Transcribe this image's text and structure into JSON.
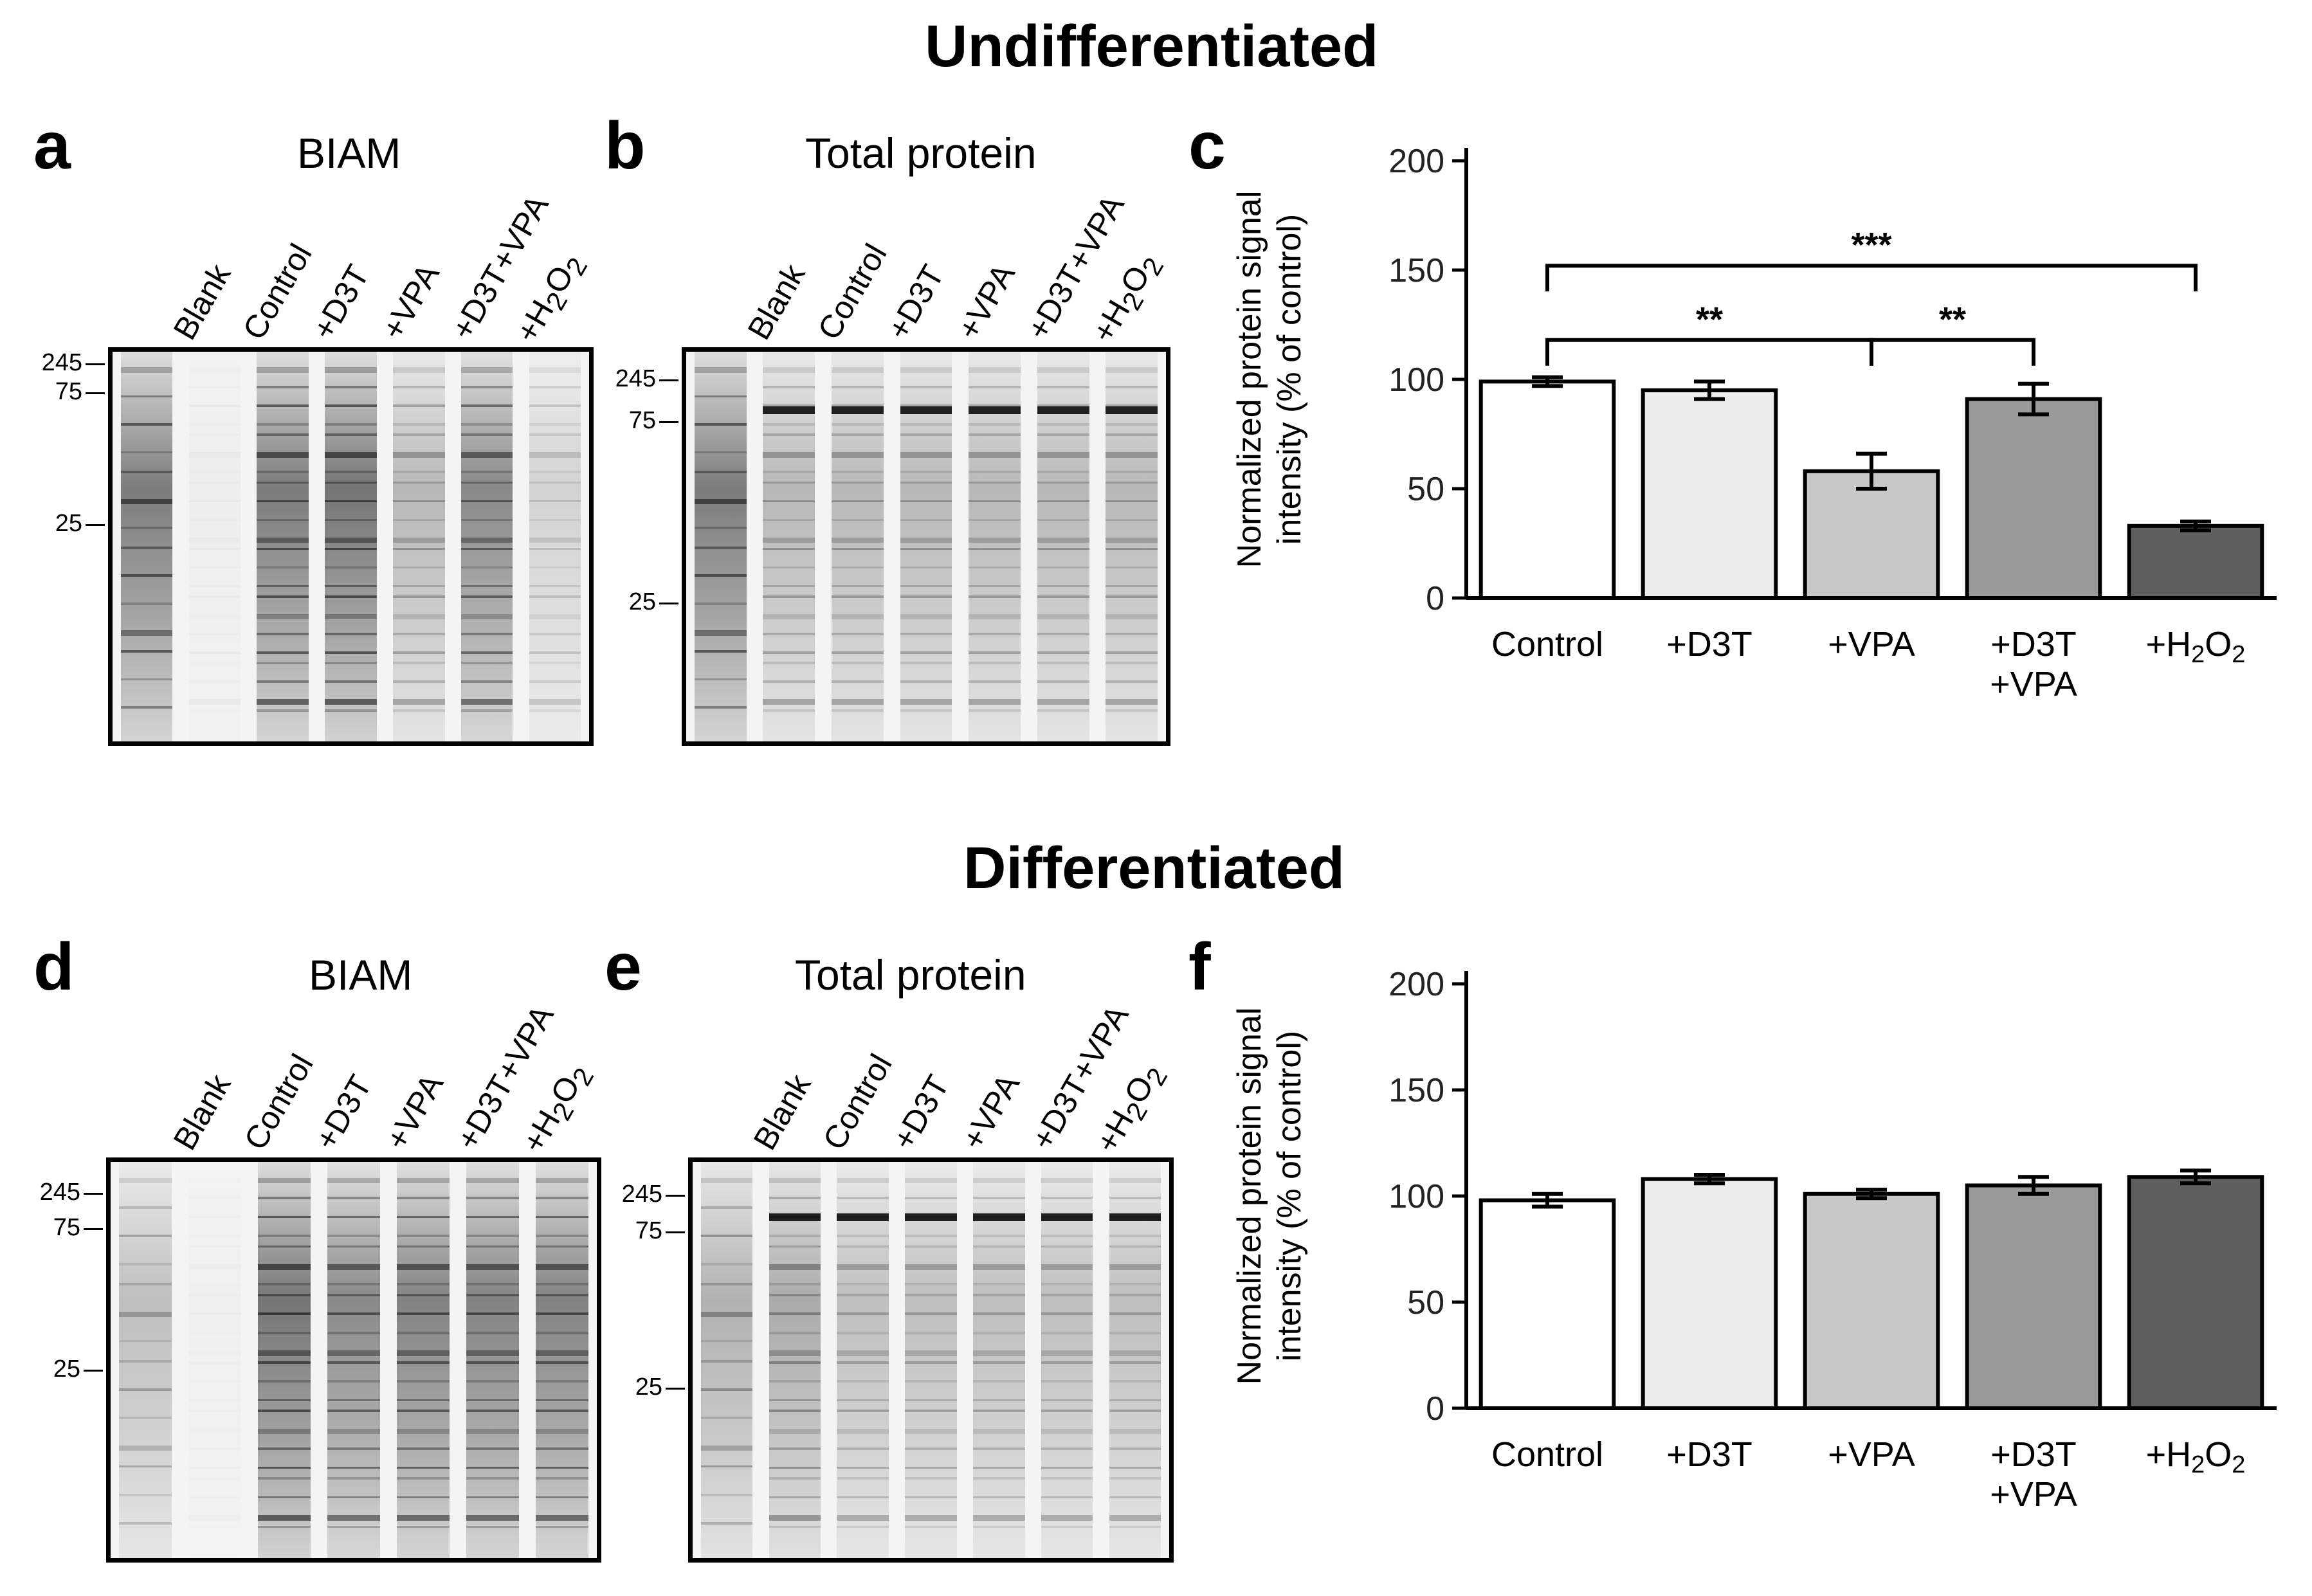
{
  "figure": {
    "top_title": "Undifferentiated",
    "bottom_title": "Differentiated"
  },
  "panels": {
    "a": {
      "letter": "a",
      "title": "BIAM"
    },
    "b": {
      "letter": "b",
      "title": "Total protein"
    },
    "c": {
      "letter": "c"
    },
    "d": {
      "letter": "d",
      "title": "BIAM"
    },
    "e": {
      "letter": "e",
      "title": "Total protein"
    },
    "f": {
      "letter": "f"
    }
  },
  "lanes": [
    "Blank",
    "Control",
    "+D3T",
    "+VPA",
    "+D3T+VPA",
    "+H2O2"
  ],
  "markers": {
    "m245": "245",
    "m75": "75",
    "m25": "25"
  },
  "chart_data": [
    {
      "panel": "c",
      "type": "bar",
      "title": "",
      "categories": [
        "Control",
        "+D3T",
        "+VPA",
        "+D3T\n+VPA",
        "+H2O2"
      ],
      "values": [
        99,
        95,
        58,
        91,
        33
      ],
      "errors": [
        2,
        4,
        8,
        7,
        2
      ],
      "colors": [
        "#ffffff",
        "#ececec",
        "#c8c8c8",
        "#9a9a9a",
        "#5f5f5f"
      ],
      "xlabel": "",
      "ylabel": "Normalized protein signal intensity (% of control)",
      "ylim": [
        0,
        200
      ],
      "yticks": [
        0,
        50,
        100,
        150,
        200
      ],
      "significance": [
        {
          "from": 0,
          "to": 4,
          "label": "***",
          "y": 152
        },
        {
          "from": 0,
          "to": 2,
          "label": "**",
          "y": 118
        },
        {
          "from": 2,
          "to": 3,
          "label": "**",
          "y": 118
        }
      ]
    },
    {
      "panel": "f",
      "type": "bar",
      "title": "",
      "categories": [
        "Control",
        "+D3T",
        "+VPA",
        "+D3T\n+VPA",
        "+H2O2"
      ],
      "values": [
        98,
        108,
        101,
        105,
        109
      ],
      "errors": [
        3,
        2,
        2,
        4,
        3
      ],
      "colors": [
        "#ffffff",
        "#ececec",
        "#c8c8c8",
        "#9a9a9a",
        "#5f5f5f"
      ],
      "xlabel": "",
      "ylabel": "Normalized protein signal intensity (% of control)",
      "ylim": [
        0,
        200
      ],
      "yticks": [
        0,
        50,
        100,
        150,
        200
      ],
      "significance": []
    }
  ]
}
